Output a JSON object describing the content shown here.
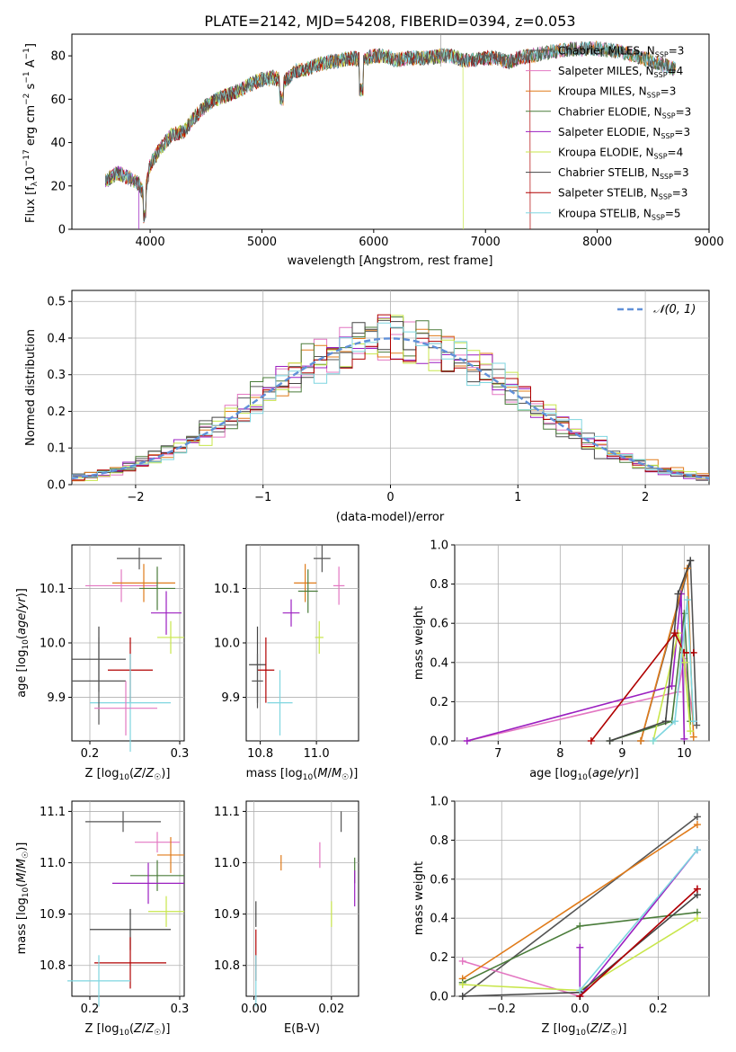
{
  "title": "PLATE=2142, MJD=54208, FIBERID=0394, z=0.053",
  "chart_data": [
    {
      "type": "line",
      "name": "spectrum",
      "xlabel": "wavelength [Angstrom, rest frame]",
      "ylabel": "Flux [f_λ10^-17 erg cm^-2 s^-1 A^-1]",
      "xlim": [
        3300,
        9000
      ],
      "ylim": [
        0,
        90
      ],
      "xticks": [
        4000,
        5000,
        6000,
        7000,
        8000,
        9000
      ],
      "yticks": [
        0,
        20,
        40,
        60,
        80
      ],
      "legend_position": "right",
      "legend": [
        "Chabrier MILES, N_SSP=3",
        "Salpeter MILES, N_SSP=4",
        "Kroupa MILES, N_SSP=3",
        "Chabrier ELODIE, N_SSP=3",
        "Salpeter ELODIE, N_SSP=3",
        "Kroupa ELODIE, N_SSP=4",
        "Chabrier STELIB, N_SSP=3",
        "Salpeter STELIB, N_SSP=3",
        "Kroupa STELIB, N_SSP=5"
      ],
      "continuum_x": [
        3600,
        3700,
        3800,
        3900,
        3950,
        4000,
        4100,
        4200,
        4300,
        4400,
        4500,
        4600,
        4700,
        4800,
        4900,
        5000,
        5100,
        5200,
        5300,
        5400,
        5500,
        5600,
        5700,
        5800,
        5900,
        6000,
        6100,
        6200,
        6300,
        6400,
        6500,
        6600,
        6700,
        6800,
        6900,
        7000,
        7100,
        7200,
        7300,
        7400
      ],
      "continuum_y": [
        22,
        26,
        24,
        21,
        15,
        30,
        38,
        44,
        45,
        52,
        57,
        60,
        62,
        64,
        67,
        69,
        70,
        68,
        73,
        74,
        76,
        77,
        78,
        79,
        78,
        80,
        80,
        78,
        79,
        79,
        79,
        80,
        80,
        78,
        78,
        79,
        79,
        77,
        79,
        80
      ],
      "truncation_ends": [
        3900,
        6800,
        7400,
        8700
      ],
      "full_extent": [
        3600,
        8700
      ],
      "grid": false
    },
    {
      "type": "histogram",
      "name": "residuals",
      "xlabel": "(data-model)/error",
      "ylabel": "Normed distribution",
      "xlim": [
        -2.5,
        2.5
      ],
      "ylim": [
        0,
        0.53
      ],
      "xticks": [
        -2,
        -1,
        0,
        1,
        2
      ],
      "yticks": [
        0.0,
        0.1,
        0.2,
        0.3,
        0.4,
        0.5
      ],
      "legend": [
        "N(0,1)"
      ],
      "legend_position": "top-right",
      "grid": true
    },
    {
      "type": "scatter",
      "name": "age-vs-Z",
      "xlabel": "Z [log10(Z/Z☉)]",
      "ylabel": "age [log10(age/yr)]",
      "xlim": [
        0.18,
        0.305
      ],
      "ylim": [
        9.82,
        10.18
      ],
      "xticks": [
        0.2,
        0.3
      ],
      "yticks": [
        9.9,
        10.0,
        10.1
      ],
      "points": [
        {
          "x": 0.255,
          "y": 10.155,
          "xerr": 0.025,
          "yerr": 0.02
        },
        {
          "x": 0.235,
          "y": 10.105,
          "xerr": 0.04,
          "yerr": 0.03
        },
        {
          "x": 0.26,
          "y": 10.11,
          "xerr": 0.035,
          "yerr": 0.035
        },
        {
          "x": 0.275,
          "y": 10.1,
          "xerr": 0.02,
          "yerr": 0.04
        },
        {
          "x": 0.285,
          "y": 10.055,
          "xerr": 0.017,
          "yerr": 0.04
        },
        {
          "x": 0.29,
          "y": 10.01,
          "xerr": 0.015,
          "yerr": 0.03
        },
        {
          "x": 0.21,
          "y": 9.97,
          "xerr": 0.03,
          "yerr": 0.06
        },
        {
          "x": 0.245,
          "y": 9.95,
          "xerr": 0.025,
          "yerr": 0.06
        },
        {
          "x": 0.245,
          "y": 9.89,
          "xerr": 0.045,
          "yerr": 0.09
        },
        {
          "x": 0.21,
          "y": 9.93,
          "xerr": 0.03,
          "yerr": 0.08
        },
        {
          "x": 0.24,
          "y": 9.88,
          "xerr": 0.035,
          "yerr": 0.05
        }
      ],
      "grid": true
    },
    {
      "type": "scatter",
      "name": "age-vs-mass",
      "xlabel": "mass [log10(M/M☉)]",
      "ylabel": "",
      "xlim": [
        10.75,
        11.15
      ],
      "ylim": [
        9.82,
        10.18
      ],
      "xticks": [
        10.8,
        11.0
      ],
      "yticks": [
        9.9,
        10.0,
        10.1
      ],
      "points": [
        {
          "x": 11.02,
          "y": 10.155,
          "xerr": 0.03,
          "yerr": 0.025
        },
        {
          "x": 11.08,
          "y": 10.105,
          "xerr": 0.02,
          "yerr": 0.035
        },
        {
          "x": 10.96,
          "y": 10.11,
          "xerr": 0.04,
          "yerr": 0.035
        },
        {
          "x": 10.97,
          "y": 10.095,
          "xerr": 0.035,
          "yerr": 0.04
        },
        {
          "x": 10.91,
          "y": 10.055,
          "xerr": 0.03,
          "yerr": 0.025
        },
        {
          "x": 11.01,
          "y": 10.01,
          "xerr": 0.015,
          "yerr": 0.03
        },
        {
          "x": 10.79,
          "y": 9.96,
          "xerr": 0.03,
          "yerr": 0.07
        },
        {
          "x": 10.82,
          "y": 9.95,
          "xerr": 0.03,
          "yerr": 0.06
        },
        {
          "x": 10.87,
          "y": 9.89,
          "xerr": 0.045,
          "yerr": 0.06
        },
        {
          "x": 10.79,
          "y": 9.93,
          "xerr": 0.02,
          "yerr": 0.05
        }
      ],
      "grid": true
    },
    {
      "type": "line",
      "name": "mass-weight-vs-age",
      "xlabel": "age [log10(age/yr)]",
      "ylabel": "mass weight",
      "xlim": [
        6.3,
        10.4
      ],
      "ylim": [
        0,
        1
      ],
      "xticks": [
        7,
        8,
        9,
        10
      ],
      "yticks": [
        0.0,
        0.2,
        0.4,
        0.6,
        0.8,
        1.0
      ],
      "series": [
        {
          "x": [
            9.3,
            10.1,
            10.2
          ],
          "y": [
            0.0,
            0.92,
            0.08
          ]
        },
        {
          "x": [
            6.5,
            9.9,
            10.0,
            10.15
          ],
          "y": [
            0.0,
            0.25,
            0.42,
            0.1
          ]
        },
        {
          "x": [
            9.3,
            10.05,
            10.15
          ],
          "y": [
            0.0,
            0.88,
            0.02
          ]
        },
        {
          "x": [
            8.8,
            9.8,
            10.0,
            10.1
          ],
          "y": [
            0.0,
            0.1,
            0.65,
            0.1
          ]
        },
        {
          "x": [
            6.5,
            9.8,
            9.95,
            10.0
          ],
          "y": [
            0.0,
            0.28,
            0.75,
            0.01
          ]
        },
        {
          "x": [
            9.5,
            9.9,
            10.0,
            10.1
          ],
          "y": [
            0.0,
            0.55,
            0.4,
            0.05
          ]
        },
        {
          "x": [
            8.8,
            9.7,
            9.9,
            10.1
          ],
          "y": [
            0.0,
            0.1,
            0.75,
            0.92
          ]
        },
        {
          "x": [
            8.5,
            9.85,
            10.0,
            10.15
          ],
          "y": [
            0.0,
            0.55,
            0.45,
            0.45
          ]
        },
        {
          "x": [
            9.5,
            9.85,
            10.05,
            10.15
          ],
          "y": [
            0.0,
            0.1,
            0.72,
            0.1
          ]
        }
      ],
      "grid": true
    },
    {
      "type": "scatter",
      "name": "mass-vs-Z",
      "xlabel": "Z [log10(Z/Z☉)]",
      "ylabel": "mass [log10(M/M☉)]",
      "xlim": [
        0.18,
        0.305
      ],
      "ylim": [
        10.74,
        11.12
      ],
      "xticks": [
        0.2,
        0.3
      ],
      "yticks": [
        10.8,
        10.9,
        11.0,
        11.1
      ],
      "points": [
        {
          "x": 0.237,
          "y": 11.08,
          "xerr": 0.042,
          "yerr": 0.02
        },
        {
          "x": 0.275,
          "y": 11.04,
          "xerr": 0.025,
          "yerr": 0.02
        },
        {
          "x": 0.29,
          "y": 11.015,
          "xerr": 0.015,
          "yerr": 0.035
        },
        {
          "x": 0.275,
          "y": 10.975,
          "xerr": 0.03,
          "yerr": 0.03
        },
        {
          "x": 0.265,
          "y": 10.96,
          "xerr": 0.04,
          "yerr": 0.04
        },
        {
          "x": 0.285,
          "y": 10.905,
          "xerr": 0.02,
          "yerr": 0.03
        },
        {
          "x": 0.245,
          "y": 10.87,
          "xerr": 0.045,
          "yerr": 0.04
        },
        {
          "x": 0.245,
          "y": 10.805,
          "xerr": 0.04,
          "yerr": 0.05
        },
        {
          "x": 0.21,
          "y": 10.77,
          "xerr": 0.035,
          "yerr": 0.05
        }
      ],
      "grid": true
    },
    {
      "type": "scatter",
      "name": "mass-vs-ebv",
      "xlabel": "E(B-V)",
      "ylabel": "",
      "xlim": [
        -0.002,
        0.027
      ],
      "ylim": [
        10.74,
        11.12
      ],
      "xticks": [
        0.0,
        0.02
      ],
      "yticks": [
        10.8,
        10.9,
        11.0,
        11.1
      ],
      "points": [
        {
          "x": 0.0225,
          "y": 11.08,
          "yerr": 0.02
        },
        {
          "x": 0.017,
          "y": 11.015,
          "yerr": 0.025
        },
        {
          "x": 0.007,
          "y": 11.0,
          "yerr": 0.015
        },
        {
          "x": 0.026,
          "y": 10.985,
          "yerr": 0.025
        },
        {
          "x": 0.026,
          "y": 10.95,
          "yerr": 0.035
        },
        {
          "x": 0.02,
          "y": 10.9,
          "yerr": 0.025
        },
        {
          "x": 0.0005,
          "y": 10.9,
          "yerr": 0.025
        },
        {
          "x": 0.0005,
          "y": 10.82,
          "yerr": 0.05
        },
        {
          "x": 0.0005,
          "y": 10.77,
          "yerr": 0.05
        }
      ],
      "grid": true
    },
    {
      "type": "line",
      "name": "mass-weight-vs-Z",
      "xlabel": "Z [log10(Z/Z☉)]",
      "ylabel": "mass weight",
      "xlim": [
        -0.32,
        0.33
      ],
      "ylim": [
        0,
        1
      ],
      "xticks": [
        -0.2,
        0.0,
        0.2
      ],
      "yticks": [
        0.0,
        0.2,
        0.4,
        0.6,
        0.8,
        1.0
      ],
      "series": [
        {
          "x": [
            -0.3,
            0.3
          ],
          "y": [
            0.0,
            0.92
          ]
        },
        {
          "x": [
            -0.3,
            0.0,
            0.3
          ],
          "y": [
            0.18,
            0.0,
            0.55
          ]
        },
        {
          "x": [
            -0.3,
            0.3
          ],
          "y": [
            0.09,
            0.88
          ]
        },
        {
          "x": [
            -0.3,
            0.0,
            0.3
          ],
          "y": [
            0.07,
            0.36,
            0.43
          ]
        },
        {
          "x": [
            0.0,
            0.0,
            0.3
          ],
          "y": [
            0.25,
            0.0,
            0.75
          ]
        },
        {
          "x": [
            -0.3,
            0.0,
            0.3
          ],
          "y": [
            0.06,
            0.03,
            0.4
          ]
        },
        {
          "x": [
            -0.3,
            0.0,
            0.3
          ],
          "y": [
            0.0,
            0.02,
            0.52
          ]
        },
        {
          "x": [
            0.0,
            0.3
          ],
          "y": [
            0.0,
            0.55
          ]
        },
        {
          "x": [
            0.0,
            0.3
          ],
          "y": [
            0.03,
            0.75
          ]
        }
      ],
      "grid": true
    }
  ],
  "colors": [
    "#555555",
    "#e377c2",
    "#e07b1a",
    "#4a7c3a",
    "#9b1fc0",
    "#c8e64b",
    "#444444",
    "#b00000",
    "#7fd6e0"
  ],
  "gaussian_color": "#6090d8"
}
